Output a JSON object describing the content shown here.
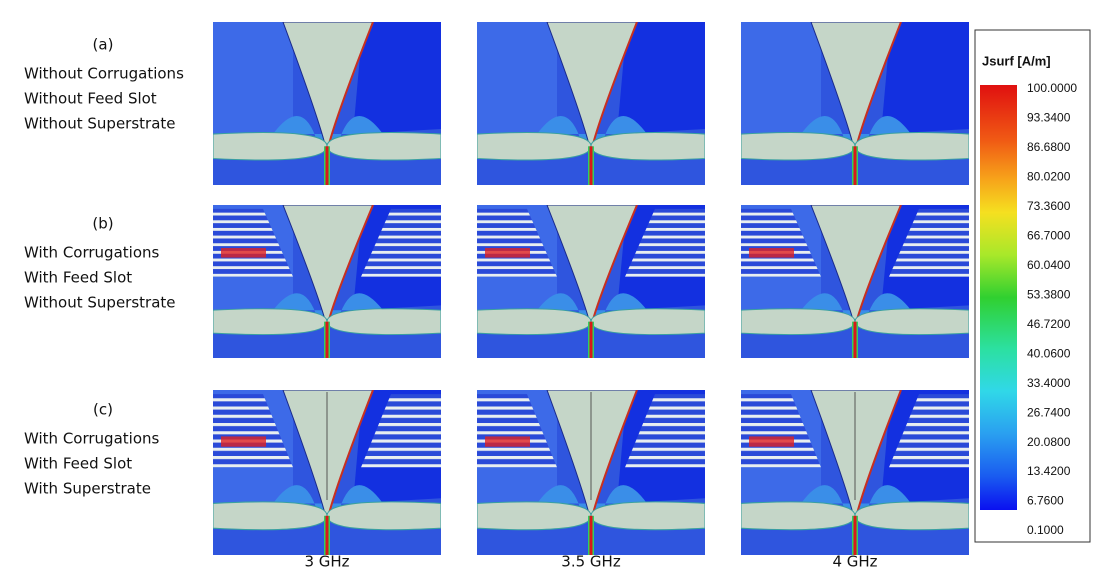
{
  "rows": [
    {
      "label": "(a)",
      "lines": [
        "Without Corrugations",
        "Without Feed Slot",
        "Without Superstrate"
      ]
    },
    {
      "label": "(b)",
      "lines": [
        "With Corrugations",
        "With Feed Slot",
        "Without Superstrate"
      ]
    },
    {
      "label": "(c)",
      "lines": [
        "With Corrugations",
        "With Feed Slot",
        "With Superstrate"
      ]
    }
  ],
  "columns": [
    "3 GHz",
    "3.5 GHz",
    "4 GHz"
  ],
  "colorbar": {
    "title": "Jsurf [A/m]",
    "ticks": [
      "100.0000",
      "93.3400",
      "86.6800",
      "80.0200",
      "73.3600",
      "66.7000",
      "60.0400",
      "53.3800",
      "46.7200",
      "40.0600",
      "33.4000",
      "26.7400",
      "20.0800",
      "13.4200",
      "6.7600",
      "0.1000"
    ]
  }
}
